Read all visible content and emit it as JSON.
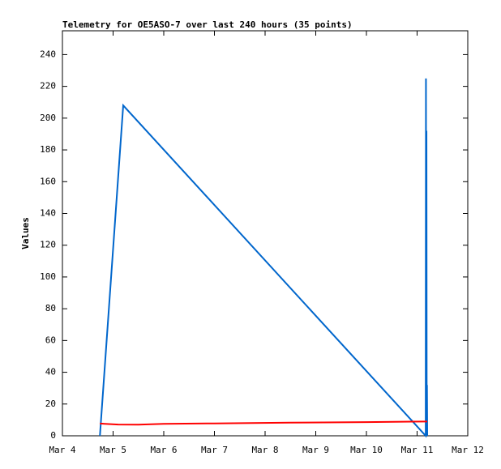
{
  "chart_data": {
    "type": "line",
    "title": "Telemetry for OE5ASO-7 over last 240 hours (35 points)",
    "ylabel": "Values",
    "xlim": [
      0,
      8
    ],
    "xticks": [
      {
        "value": 0,
        "label": "Mar 4"
      },
      {
        "value": 1,
        "label": "Mar 5"
      },
      {
        "value": 2,
        "label": "Mar 6"
      },
      {
        "value": 3,
        "label": "Mar 7"
      },
      {
        "value": 4,
        "label": "Mar 8"
      },
      {
        "value": 5,
        "label": "Mar 9"
      },
      {
        "value": 6,
        "label": "Mar 10"
      },
      {
        "value": 7,
        "label": "Mar 11"
      },
      {
        "value": 8,
        "label": "Mar 12"
      }
    ],
    "ylim": [
      0,
      255
    ],
    "yticks": [
      0,
      20,
      40,
      60,
      80,
      100,
      120,
      140,
      160,
      180,
      200,
      220,
      240
    ],
    "grid": false,
    "series": [
      {
        "color": "#0066cc",
        "x": [
          0.74,
          1.2,
          7.17,
          7.175,
          7.18,
          7.185,
          7.19,
          7.195,
          7.2
        ],
        "values": [
          0,
          208,
          0,
          225,
          0,
          192,
          0,
          32,
          0
        ]
      },
      {
        "color": "#ff0000",
        "x": [
          0.74,
          1.1,
          1.5,
          2.0,
          3.0,
          4.5,
          6.0,
          7.2
        ],
        "values": [
          7.7,
          7.1,
          7,
          7.5,
          7.8,
          8.3,
          8.6,
          9
        ]
      }
    ]
  }
}
